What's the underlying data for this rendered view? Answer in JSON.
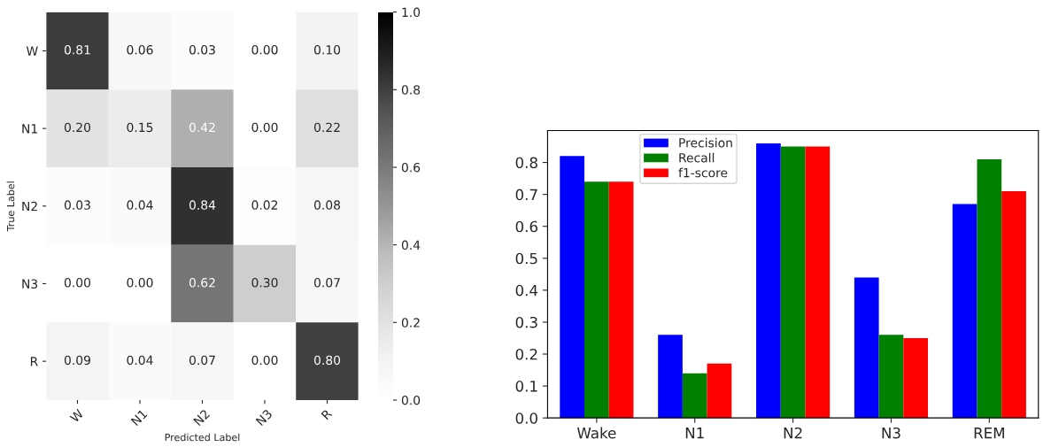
{
  "chart_data": [
    {
      "type": "heatmap",
      "xlabel": "Predicted Label",
      "ylabel": "True Label",
      "categories": [
        "W",
        "N1",
        "N2",
        "N3",
        "R"
      ],
      "y_categories": [
        "W",
        "N1",
        "N2",
        "N3",
        "R"
      ],
      "cells": [
        [
          0.81,
          0.06,
          0.03,
          0.0,
          0.1
        ],
        [
          0.2,
          0.15,
          0.42,
          0.0,
          0.22
        ],
        [
          0.03,
          0.04,
          0.84,
          0.02,
          0.08
        ],
        [
          0.0,
          0.0,
          0.62,
          0.3,
          0.07
        ],
        [
          0.09,
          0.04,
          0.07,
          0.0,
          0.8
        ]
      ],
      "cell_labels": [
        [
          "0.81",
          "0.06",
          "0.03",
          "0.00",
          "0.10"
        ],
        [
          "0.20",
          "0.15",
          "0.42",
          "0.00",
          "0.22"
        ],
        [
          "0.03",
          "0.04",
          "0.84",
          "0.02",
          "0.08"
        ],
        [
          "0.00",
          "0.00",
          "0.62",
          "0.30",
          "0.07"
        ],
        [
          "0.09",
          "0.04",
          "0.07",
          "0.00",
          "0.80"
        ]
      ],
      "clim": [
        0,
        1
      ],
      "cticks": [
        {
          "value": 0,
          "label": "0.0"
        },
        {
          "value": 0.2,
          "label": "0.2"
        },
        {
          "value": 0.4,
          "label": "0.4"
        },
        {
          "value": 0.6,
          "label": "0.6"
        },
        {
          "value": 0.8,
          "label": "0.8"
        },
        {
          "value": 1,
          "label": "1.0"
        }
      ]
    },
    {
      "type": "bar",
      "categories": [
        "Wake",
        "N1",
        "N2",
        "N3",
        "REM"
      ],
      "series": [
        {
          "name": "Precision",
          "color": "#0000ff",
          "values": [
            0.82,
            0.26,
            0.86,
            0.44,
            0.67
          ]
        },
        {
          "name": "Recall",
          "color": "#008000",
          "values": [
            0.74,
            0.14,
            0.85,
            0.26,
            0.81
          ]
        },
        {
          "name": "f1-score",
          "color": "#ff0000",
          "values": [
            0.74,
            0.17,
            0.85,
            0.25,
            0.71
          ]
        }
      ],
      "ylim": [
        0,
        0.9
      ],
      "yticks": [
        {
          "value": 0,
          "label": "0.0"
        },
        {
          "value": 0.1,
          "label": "0.1"
        },
        {
          "value": 0.2,
          "label": "0.2"
        },
        {
          "value": 0.3,
          "label": "0.3"
        },
        {
          "value": 0.4,
          "label": "0.4"
        },
        {
          "value": 0.5,
          "label": "0.5"
        },
        {
          "value": 0.6,
          "label": "0.6"
        },
        {
          "value": 0.7,
          "label": "0.7"
        },
        {
          "value": 0.8,
          "label": "0.8"
        }
      ],
      "legend": "top left",
      "grid": false
    }
  ]
}
